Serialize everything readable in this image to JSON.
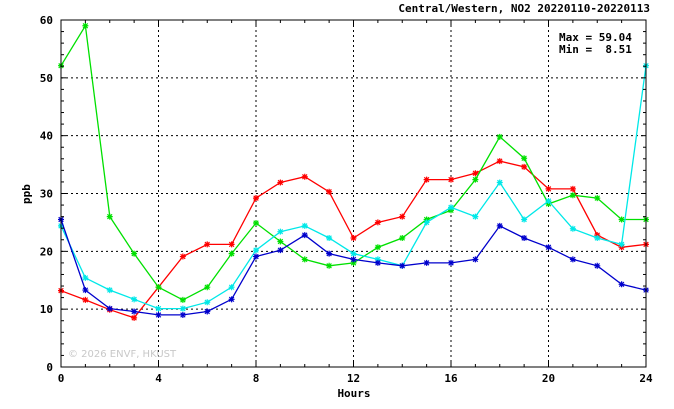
{
  "chart_data": {
    "type": "line",
    "title": "Central/Western, NO2 20220110-20220113",
    "xlabel": "Hours",
    "ylabel": "ppb",
    "xlim": [
      0,
      24
    ],
    "ylim": [
      0,
      60
    ],
    "x_ticks": [
      0,
      4,
      8,
      12,
      16,
      20,
      24
    ],
    "y_ticks": [
      0,
      10,
      20,
      30,
      40,
      50,
      60
    ],
    "grid": true,
    "stats": {
      "max_label": "Max = 59.04",
      "min_label": "Min =  8.51"
    },
    "watermark": "© 2026 ENVF, HKUST",
    "x": [
      0,
      1,
      2,
      3,
      4,
      5,
      6,
      7,
      8,
      9,
      10,
      11,
      12,
      13,
      14,
      15,
      16,
      17,
      18,
      19,
      20,
      21,
      22,
      23,
      24
    ],
    "series": [
      {
        "color": "#ff0000",
        "values": [
          13.2,
          11.6,
          9.9,
          8.5,
          13.8,
          19.1,
          21.2,
          21.2,
          29.2,
          31.9,
          32.9,
          30.3,
          22.3,
          25.0,
          26.0,
          32.4,
          32.4,
          33.5,
          35.6,
          34.6,
          30.8,
          30.8,
          22.8,
          20.7,
          21.2
        ]
      },
      {
        "color": "#00e000",
        "values": [
          52.1,
          59.0,
          26.0,
          19.6,
          13.8,
          11.6,
          13.8,
          19.6,
          24.9,
          21.7,
          18.6,
          17.5,
          18.0,
          20.7,
          22.3,
          25.5,
          27.1,
          32.4,
          39.8,
          36.1,
          28.2,
          29.7,
          29.2,
          25.5,
          25.5
        ]
      },
      {
        "color": "#00e8e8",
        "values": [
          24.4,
          15.4,
          13.3,
          11.7,
          10.1,
          10.1,
          11.2,
          13.8,
          20.2,
          23.4,
          24.4,
          22.3,
          19.6,
          18.6,
          17.5,
          25.0,
          27.6,
          26.0,
          31.9,
          25.5,
          28.7,
          23.9,
          22.3,
          21.2,
          52.1
        ]
      },
      {
        "color": "#0000cc",
        "values": [
          25.5,
          13.3,
          10.1,
          9.6,
          9.0,
          9.0,
          9.6,
          11.7,
          19.1,
          20.2,
          22.8,
          19.6,
          18.6,
          18.0,
          17.5,
          18.0,
          18.0,
          18.6,
          24.4,
          22.3,
          20.7,
          18.6,
          17.5,
          14.3,
          13.3
        ]
      }
    ]
  }
}
